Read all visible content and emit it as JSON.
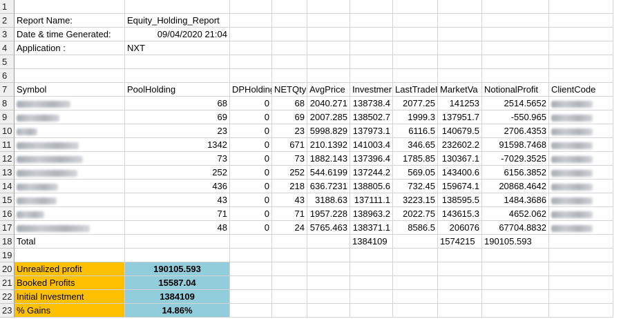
{
  "row_numbers": [
    "1",
    "2",
    "3",
    "4",
    "5",
    "6",
    "7",
    "8",
    "9",
    "10",
    "11",
    "12",
    "13",
    "14",
    "15",
    "16",
    "17",
    "18",
    "19",
    "20",
    "21",
    "22",
    "23"
  ],
  "meta": {
    "report_name_label": "Report Name:",
    "report_name_value": "Equity_Holding_Report",
    "generated_label": "Date & time Generated:",
    "generated_value": "09/04/2020 21:04",
    "application_label": "Application :",
    "application_value": "NXT"
  },
  "columns": [
    "Symbol",
    "PoolHolding",
    "DPHolding",
    "NETQty",
    "AvgPrice",
    "Investment",
    "LastTradedPrice",
    "MarketValue",
    "NotionalProfit",
    "ClientCode"
  ],
  "columns_display": [
    "Symbol",
    "PoolHolding",
    "DPHolding",
    "NETQty",
    "AvgPrice",
    "Investmer",
    "LastTradeI",
    "MarketVa",
    "NotionalProfit",
    "ClientCode"
  ],
  "rows": [
    {
      "pool": "68",
      "dp": "0",
      "net": "68",
      "avg": "2040.271",
      "inv": "138738.4",
      "ltp": "2077.25",
      "mv": "141253",
      "np": "2514.5652"
    },
    {
      "pool": "69",
      "dp": "0",
      "net": "69",
      "avg": "2007.285",
      "inv": "138502.7",
      "ltp": "1999.3",
      "mv": "137951.7",
      "np": "-550.965"
    },
    {
      "pool": "23",
      "dp": "0",
      "net": "23",
      "avg": "5998.829",
      "inv": "137973.1",
      "ltp": "6116.5",
      "mv": "140679.5",
      "np": "2706.4353"
    },
    {
      "pool": "1342",
      "dp": "0",
      "net": "671",
      "avg": "210.1392",
      "inv": "141003.4",
      "ltp": "346.65",
      "mv": "232602.2",
      "np": "91598.7468"
    },
    {
      "pool": "73",
      "dp": "0",
      "net": "73",
      "avg": "1882.143",
      "inv": "137396.4",
      "ltp": "1785.85",
      "mv": "130367.1",
      "np": "-7029.3525"
    },
    {
      "pool": "252",
      "dp": "0",
      "net": "252",
      "avg": "544.6199",
      "inv": "137244.2",
      "ltp": "569.05",
      "mv": "143400.6",
      "np": "6156.3852"
    },
    {
      "pool": "436",
      "dp": "0",
      "net": "218",
      "avg": "636.7231",
      "inv": "138805.6",
      "ltp": "732.45",
      "mv": "159674.1",
      "np": "20868.4642"
    },
    {
      "pool": "43",
      "dp": "0",
      "net": "43",
      "avg": "3188.63",
      "inv": "137111.1",
      "ltp": "3223.15",
      "mv": "138595.5",
      "np": "1484.3686"
    },
    {
      "pool": "71",
      "dp": "0",
      "net": "71",
      "avg": "1957.228",
      "inv": "138963.2",
      "ltp": "2022.75",
      "mv": "143615.3",
      "np": "4652.062"
    },
    {
      "pool": "48",
      "dp": "0",
      "net": "24",
      "avg": "5765.463",
      "inv": "138371.1",
      "ltp": "8586.5",
      "mv": "206076",
      "np": "67704.8832"
    }
  ],
  "total": {
    "label": "Total",
    "inv": "1384109",
    "mv": "1574215",
    "np": "190105.593"
  },
  "summary": [
    {
      "label": "Unrealized profit",
      "value": "190105.593"
    },
    {
      "label": "Booked Profits",
      "value": "15587.04"
    },
    {
      "label": "Initial Investment",
      "value": "1384109"
    },
    {
      "label": "% Gains",
      "value": "14.86%"
    }
  ],
  "colors": {
    "summary_label_bg": "#ffc000",
    "summary_value_bg": "#92cddc",
    "header_bg": "#f0f0f0",
    "grid": "#d4d4d4"
  }
}
